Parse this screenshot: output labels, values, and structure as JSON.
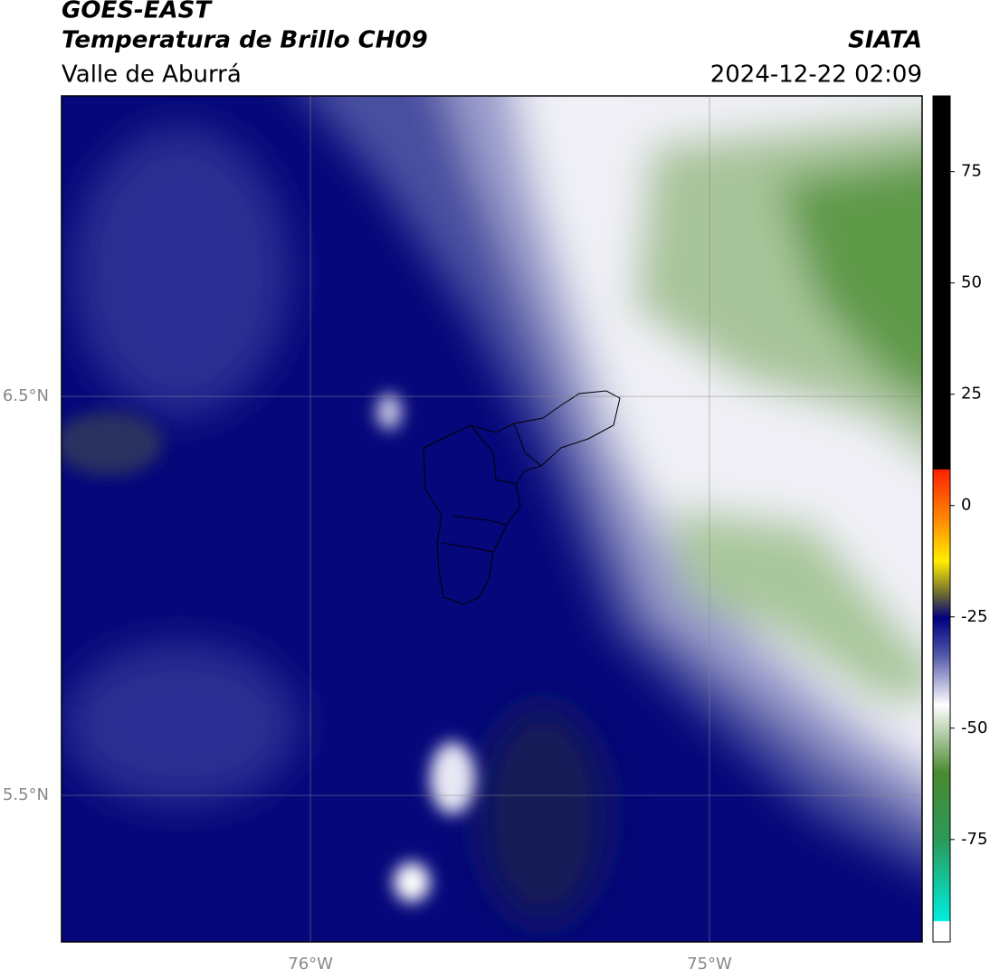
{
  "header": {
    "title": "GOES-EAST",
    "subtitle": "Temperatura de Brillo CH09",
    "region": "Valle de Aburrá",
    "agency": "SIATA",
    "datetime": "2024-12-22 02:09"
  },
  "map": {
    "lat_lim": [
      5.133,
      7.253
    ],
    "lon_lim": [
      -76.624,
      -74.467
    ],
    "lat_ticks": [
      {
        "value": 6.5,
        "label": "6.5°N"
      },
      {
        "value": 5.5,
        "label": "5.5°N"
      }
    ],
    "lon_ticks": [
      {
        "value": -76,
        "label": "76°W"
      },
      {
        "value": -75,
        "label": "75°W"
      }
    ]
  },
  "colorbar": {
    "lim": [
      -98,
      92
    ],
    "ticks": [
      75,
      50,
      25,
      0,
      -25,
      -50,
      -75
    ]
  }
}
